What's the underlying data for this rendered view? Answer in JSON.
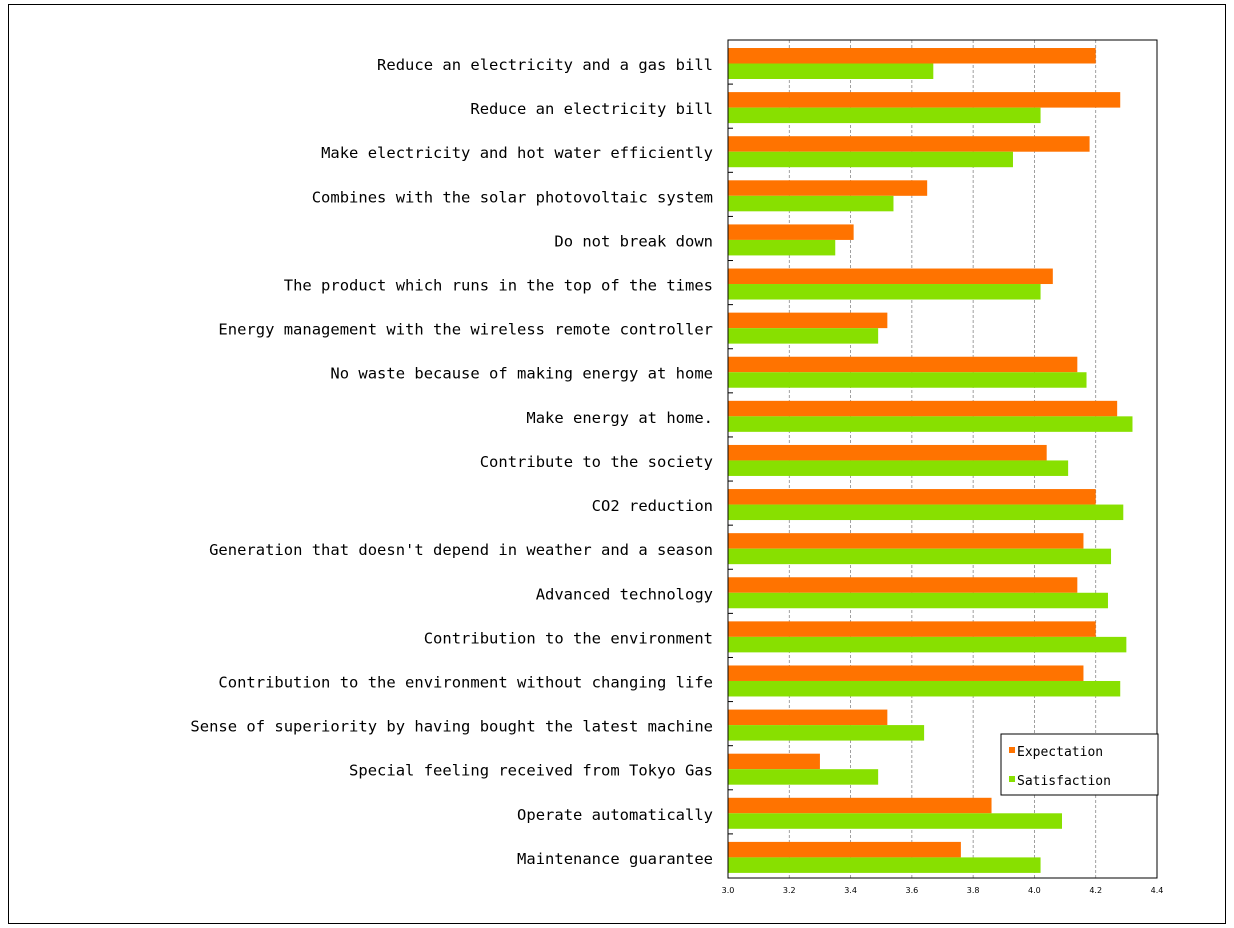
{
  "chart_data": {
    "type": "bar",
    "orientation": "horizontal",
    "title": "",
    "xlabel": "",
    "ylabel": "",
    "xlim": [
      3.0,
      4.4
    ],
    "xticks": [
      "3.0",
      "3.2",
      "3.4",
      "3.6",
      "3.8",
      "4.0",
      "4.2",
      "4.4"
    ],
    "grid": true,
    "legend": "bottom-right",
    "categories": [
      "Reduce an electricity and a gas bill",
      "Reduce an electricity bill",
      "Make electricity and hot water efficiently",
      "Combines with the solar photovoltaic system",
      "Do not break down",
      "The product which runs in the top of the times",
      "Energy management with the wireless remote controller",
      "No waste because of making energy at home",
      "Make energy at home.",
      "Contribute to the society",
      "CO2 reduction",
      "Generation that doesn't depend in weather and a season",
      "Advanced technology",
      "Contribution to the environment",
      "Contribution to the environment without changing life",
      "Sense of superiority by having bought the latest machine",
      "Special feeling received from Tokyo Gas",
      "Operate automatically",
      "Maintenance guarantee"
    ],
    "series": [
      {
        "name": "Expectation",
        "color": "#ff7300",
        "values": [
          4.2,
          4.28,
          4.18,
          3.65,
          3.41,
          4.06,
          3.52,
          4.14,
          4.27,
          4.04,
          4.2,
          4.16,
          4.14,
          4.2,
          4.16,
          3.52,
          3.3,
          3.86,
          3.76
        ]
      },
      {
        "name": "Satisfaction",
        "color": "#88e000",
        "values": [
          3.67,
          4.02,
          3.93,
          3.54,
          3.35,
          4.02,
          3.49,
          4.17,
          4.32,
          4.11,
          4.29,
          4.25,
          4.24,
          4.3,
          4.28,
          3.64,
          3.49,
          4.09,
          4.02
        ]
      }
    ]
  }
}
